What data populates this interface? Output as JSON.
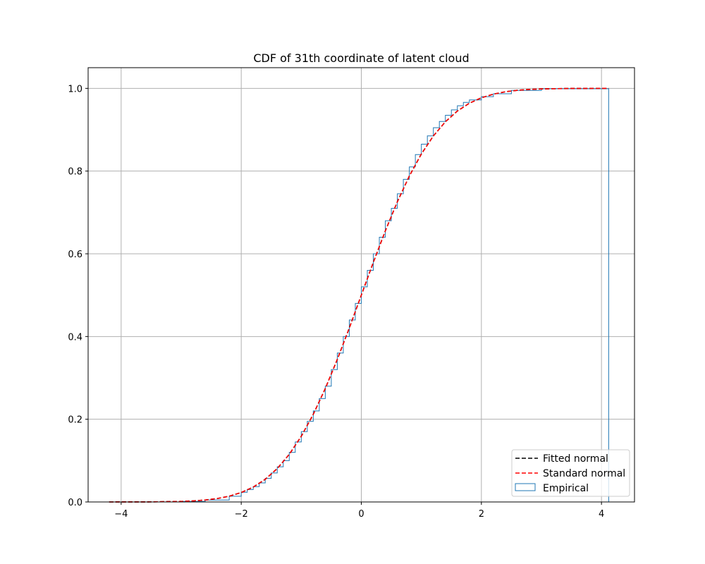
{
  "chart_data": {
    "type": "line",
    "title": "CDF of 31th coordinate of latent cloud",
    "xlabel": "",
    "ylabel": "",
    "xlim": [
      -4.55,
      4.55
    ],
    "ylim": [
      -0.0,
      1.05
    ],
    "xticks": [
      -4,
      -2,
      0,
      2,
      4
    ],
    "xtick_labels": [
      "−4",
      "−2",
      "0",
      "2",
      "4"
    ],
    "yticks": [
      0.0,
      0.2,
      0.4,
      0.6,
      0.8,
      1.0
    ],
    "ytick_labels": [
      "0.0",
      "0.2",
      "0.4",
      "0.6",
      "0.8",
      "1.0"
    ],
    "grid": true,
    "legend_position": "bottom-right",
    "colors": {
      "fitted": "#000000",
      "standard": "#ff0000",
      "empirical": "#1f77b4",
      "grid": "#b0b0b0"
    },
    "series": [
      {
        "name": "Fitted normal",
        "style": "dashed",
        "x": [
          -4.2,
          -3.5,
          -3.0,
          -2.8,
          -2.6,
          -2.4,
          -2.2,
          -2.0,
          -1.8,
          -1.6,
          -1.4,
          -1.2,
          -1.0,
          -0.8,
          -0.6,
          -0.4,
          -0.2,
          0.0,
          0.2,
          0.4,
          0.6,
          0.8,
          1.0,
          1.2,
          1.4,
          1.6,
          1.8,
          2.0,
          2.2,
          2.4,
          2.6,
          2.8,
          3.0,
          3.5,
          4.12
        ],
        "y": [
          0.0,
          0.0002,
          0.0013,
          0.0026,
          0.0047,
          0.0082,
          0.0139,
          0.0228,
          0.0359,
          0.0548,
          0.0808,
          0.1151,
          0.1587,
          0.2119,
          0.2743,
          0.3446,
          0.4207,
          0.5,
          0.5793,
          0.6554,
          0.7257,
          0.7881,
          0.8413,
          0.8849,
          0.9192,
          0.9452,
          0.9641,
          0.9772,
          0.9861,
          0.9918,
          0.9953,
          0.9974,
          0.9987,
          0.9998,
          1.0
        ]
      },
      {
        "name": "Standard normal",
        "style": "dashed",
        "x": [
          -4.2,
          -3.5,
          -3.0,
          -2.8,
          -2.6,
          -2.4,
          -2.2,
          -2.0,
          -1.8,
          -1.6,
          -1.4,
          -1.2,
          -1.0,
          -0.8,
          -0.6,
          -0.4,
          -0.2,
          0.0,
          0.2,
          0.4,
          0.6,
          0.8,
          1.0,
          1.2,
          1.4,
          1.6,
          1.8,
          2.0,
          2.2,
          2.4,
          2.6,
          2.8,
          3.0,
          3.5,
          4.12
        ],
        "y": [
          0.0,
          0.0002,
          0.0013,
          0.0026,
          0.0047,
          0.0082,
          0.0139,
          0.0228,
          0.0359,
          0.0548,
          0.0808,
          0.1151,
          0.1587,
          0.2119,
          0.2743,
          0.3446,
          0.4207,
          0.5,
          0.5793,
          0.6554,
          0.7257,
          0.7881,
          0.8413,
          0.8849,
          0.9192,
          0.9452,
          0.9641,
          0.9772,
          0.9861,
          0.9918,
          0.9953,
          0.9974,
          0.9987,
          0.9998,
          1.0
        ]
      },
      {
        "name": "Empirical",
        "style": "step",
        "x": [
          -4.2,
          -3.0,
          -2.6,
          -2.2,
          -2.0,
          -1.9,
          -1.8,
          -1.7,
          -1.6,
          -1.5,
          -1.4,
          -1.3,
          -1.2,
          -1.1,
          -1.0,
          -0.9,
          -0.8,
          -0.7,
          -0.6,
          -0.5,
          -0.4,
          -0.3,
          -0.2,
          -0.1,
          0.0,
          0.1,
          0.2,
          0.3,
          0.4,
          0.5,
          0.6,
          0.7,
          0.8,
          0.9,
          1.0,
          1.1,
          1.2,
          1.3,
          1.4,
          1.5,
          1.6,
          1.7,
          1.8,
          2.0,
          2.2,
          2.5,
          3.0,
          4.12
        ],
        "y": [
          0.0,
          0.0013,
          0.0047,
          0.0139,
          0.0235,
          0.03,
          0.037,
          0.046,
          0.057,
          0.07,
          0.085,
          0.1,
          0.12,
          0.145,
          0.17,
          0.195,
          0.22,
          0.25,
          0.28,
          0.32,
          0.36,
          0.4,
          0.44,
          0.48,
          0.52,
          0.56,
          0.6,
          0.64,
          0.68,
          0.71,
          0.745,
          0.78,
          0.81,
          0.84,
          0.865,
          0.885,
          0.905,
          0.92,
          0.935,
          0.948,
          0.958,
          0.966,
          0.972,
          0.98,
          0.987,
          0.995,
          0.999,
          1.0
        ]
      }
    ]
  }
}
